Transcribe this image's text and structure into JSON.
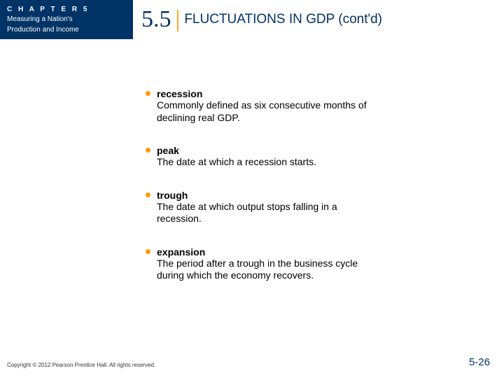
{
  "header": {
    "chapter_label": "C H A P T E R   5",
    "chapter_title_line1": "Measuring a Nation's",
    "chapter_title_line2": "Production and Income",
    "section_number": "5.5",
    "section_title": "FLUCTUATIONS IN GDP (cont'd)"
  },
  "colors": {
    "navy": "#003366",
    "orange": "#ff9900",
    "white": "#ffffff",
    "black": "#000000"
  },
  "fonts": {
    "body_family": "Arial, Helvetica, sans-serif",
    "number_family": "Times New Roman, Times, serif",
    "section_num_size": 34,
    "section_title_size": 19,
    "body_size": 14,
    "chapter_box_size": 10,
    "copyright_size": 8,
    "pagenum_size": 15
  },
  "items": [
    {
      "term": "recession",
      "definition": "Commonly defined as six consecutive months of declining real GDP."
    },
    {
      "term": "peak",
      "definition": "The date at which a recession starts."
    },
    {
      "term": "trough",
      "definition": "The date at which output stops falling in a recession."
    },
    {
      "term": "expansion",
      "definition": "The period after a trough in the business cycle during which the economy recovers."
    }
  ],
  "footer": {
    "copyright": "Copyright © 2012 Pearson Prentice Hall. All rights reserved.",
    "page_number": "5-26"
  }
}
